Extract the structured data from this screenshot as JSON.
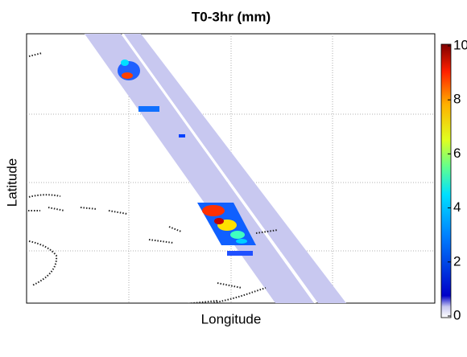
{
  "chart_data": {
    "type": "heatmap",
    "title": "T0-3hr (mm)",
    "x_label": "Longitude",
    "y_label": "Latitude",
    "colorbar": {
      "lim": [
        0,
        10
      ],
      "ticks": [
        0,
        2,
        4,
        6,
        8,
        10
      ]
    },
    "grid": true
  }
}
